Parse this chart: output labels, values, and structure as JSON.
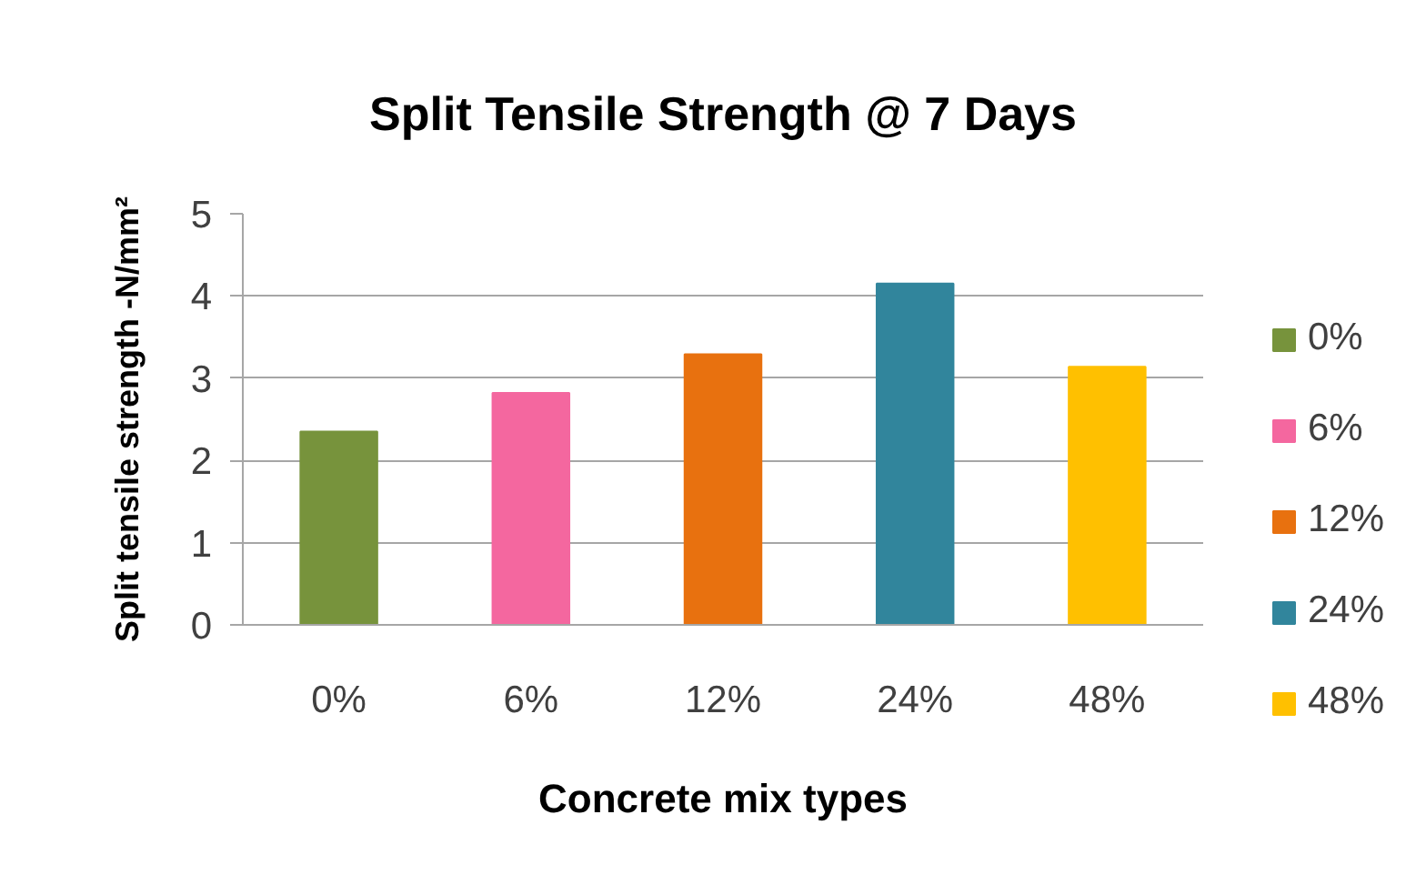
{
  "chart_data": {
    "type": "bar",
    "title": "Split Tensile Strength @ 7 Days",
    "xlabel": "Concrete mix types",
    "ylabel": "Split tensile strength -N/mm²",
    "categories": [
      "0%",
      "6%",
      "12%",
      "24%",
      "48%"
    ],
    "series": [
      {
        "name": "0%",
        "color": "#77933c",
        "values": [
          2.35,
          null,
          null,
          null,
          null
        ]
      },
      {
        "name": "6%",
        "color": "#f4679f",
        "values": [
          null,
          2.82,
          null,
          null,
          null
        ]
      },
      {
        "name": "12%",
        "color": "#e8710f",
        "values": [
          null,
          null,
          3.29,
          null,
          null
        ]
      },
      {
        "name": "24%",
        "color": "#31859c",
        "values": [
          null,
          null,
          null,
          4.15,
          null
        ]
      },
      {
        "name": "48%",
        "color": "#ffc000",
        "values": [
          null,
          null,
          null,
          null,
          3.14
        ]
      }
    ],
    "ylim": [
      0,
      5
    ],
    "yticks": [
      0,
      1,
      2,
      3,
      4,
      5
    ],
    "grid": "y",
    "legend": "right"
  }
}
